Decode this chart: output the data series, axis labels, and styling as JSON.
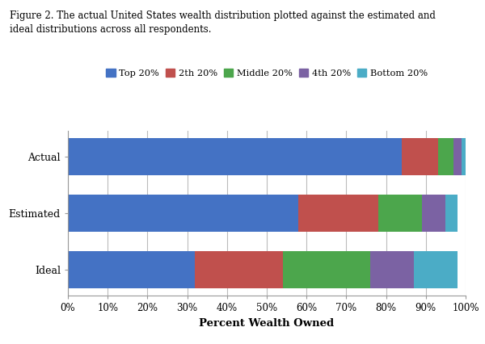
{
  "categories": [
    "Actual",
    "Estimated",
    "Ideal"
  ],
  "series": {
    "Top 20%": [
      84,
      58,
      32
    ],
    "2th 20%": [
      9,
      20,
      22
    ],
    "Middle 20%": [
      4,
      11,
      22
    ],
    "4th 20%": [
      2,
      6,
      11
    ],
    "Bottom 20%": [
      1,
      3,
      11
    ]
  },
  "colors": {
    "Top 20%": "#4472C4",
    "2th 20%": "#C0504D",
    "Middle 20%": "#4CA64C",
    "4th 20%": "#7B62A3",
    "Bottom 20%": "#4BACC6"
  },
  "xlabel": "Percent Wealth Owned",
  "xlim": [
    0,
    100
  ],
  "xticks": [
    0,
    10,
    20,
    30,
    40,
    50,
    60,
    70,
    80,
    90,
    100
  ],
  "xtick_labels": [
    "0%",
    "10%",
    "20%",
    "30%",
    "40%",
    "50%",
    "60%",
    "70%",
    "80%",
    "90%",
    "100%"
  ],
  "figure_title_line1": "Figure 2. The actual United States wealth distribution plotted against the estimated and",
  "figure_title_line2": "ideal distributions across all respondents.",
  "background_color": "#FFFFFF",
  "bar_height": 0.65,
  "grid_color": "#BBBBBB",
  "spine_color": "#999999"
}
